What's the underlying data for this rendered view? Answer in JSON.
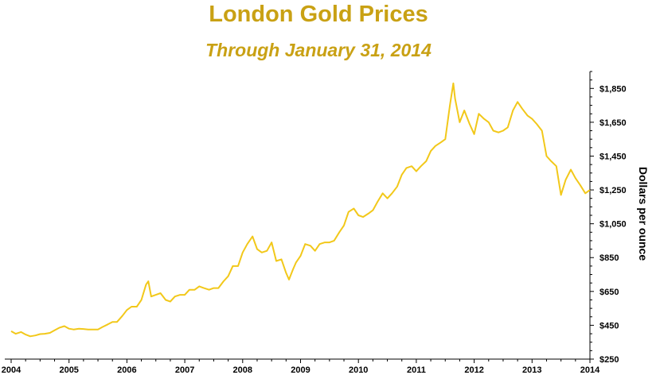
{
  "colors": {
    "title": "#C9A114",
    "line": "#F2C81A",
    "axis": "#000000"
  },
  "chart_data": {
    "type": "line",
    "title": "London Gold Prices",
    "subtitle": "Through January 31, 2014",
    "xlabel": "",
    "ylabel": "Dollars per ounce",
    "x_ticks": [
      "2004",
      "2005",
      "2006",
      "2007",
      "2008",
      "2009",
      "2010",
      "2011",
      "2012",
      "2013",
      "2014"
    ],
    "y_ticks": [
      "$250",
      "$450",
      "$650",
      "$850",
      "$1,050",
      "$1,250",
      "$1,450",
      "$1,650",
      "$1,850"
    ],
    "y_tick_values": [
      250,
      450,
      650,
      850,
      1050,
      1250,
      1450,
      1650,
      1850
    ],
    "xlim": [
      2004.0,
      2014.0
    ],
    "ylim": [
      250,
      1950
    ],
    "grid": false,
    "y_axis_side": "right",
    "series": [
      {
        "x": [
          2004.0,
          2004.08,
          2004.17,
          2004.25,
          2004.33,
          2004.42,
          2004.5,
          2004.58,
          2004.67,
          2004.75,
          2004.83,
          2004.92,
          2005.0,
          2005.08,
          2005.17,
          2005.25,
          2005.33,
          2005.42,
          2005.5,
          2005.58,
          2005.67,
          2005.75,
          2005.83,
          2005.92,
          2006.0,
          2006.08,
          2006.17,
          2006.25,
          2006.33,
          2006.37,
          2006.42,
          2006.5,
          2006.58,
          2006.67,
          2006.75,
          2006.83,
          2006.92,
          2007.0,
          2007.08,
          2007.17,
          2007.25,
          2007.33,
          2007.42,
          2007.5,
          2007.58,
          2007.67,
          2007.75,
          2007.83,
          2007.92,
          2008.0,
          2008.08,
          2008.17,
          2008.25,
          2008.33,
          2008.42,
          2008.5,
          2008.58,
          2008.67,
          2008.75,
          2008.8,
          2008.87,
          2008.92,
          2009.0,
          2009.08,
          2009.17,
          2009.25,
          2009.33,
          2009.42,
          2009.5,
          2009.58,
          2009.67,
          2009.75,
          2009.83,
          2009.92,
          2010.0,
          2010.08,
          2010.17,
          2010.25,
          2010.33,
          2010.42,
          2010.5,
          2010.58,
          2010.67,
          2010.75,
          2010.83,
          2010.92,
          2011.0,
          2011.08,
          2011.17,
          2011.25,
          2011.33,
          2011.42,
          2011.5,
          2011.58,
          2011.64,
          2011.67,
          2011.75,
          2011.83,
          2011.92,
          2012.0,
          2012.08,
          2012.17,
          2012.25,
          2012.33,
          2012.42,
          2012.5,
          2012.58,
          2012.67,
          2012.75,
          2012.83,
          2012.92,
          2013.0,
          2013.08,
          2013.17,
          2013.25,
          2013.33,
          2013.42,
          2013.5,
          2013.58,
          2013.67,
          2013.75,
          2013.83,
          2013.92,
          2014.0
        ],
        "y": [
          415,
          400,
          410,
          395,
          385,
          390,
          398,
          400,
          405,
          420,
          435,
          445,
          430,
          425,
          430,
          428,
          425,
          425,
          425,
          440,
          455,
          470,
          470,
          505,
          540,
          560,
          560,
          600,
          690,
          710,
          620,
          630,
          640,
          600,
          590,
          620,
          630,
          630,
          660,
          660,
          680,
          670,
          660,
          670,
          670,
          710,
          740,
          800,
          800,
          880,
          930,
          975,
          900,
          880,
          890,
          940,
          830,
          840,
          760,
          720,
          780,
          820,
          860,
          930,
          920,
          890,
          930,
          940,
          940,
          950,
          1000,
          1040,
          1120,
          1140,
          1100,
          1090,
          1110,
          1130,
          1180,
          1230,
          1200,
          1230,
          1270,
          1340,
          1380,
          1390,
          1360,
          1390,
          1420,
          1480,
          1510,
          1530,
          1550,
          1750,
          1880,
          1790,
          1650,
          1720,
          1640,
          1580,
          1700,
          1670,
          1650,
          1600,
          1590,
          1600,
          1620,
          1720,
          1770,
          1730,
          1690,
          1670,
          1640,
          1600,
          1450,
          1420,
          1390,
          1220,
          1310,
          1370,
          1320,
          1280,
          1230,
          1250
        ]
      }
    ]
  }
}
